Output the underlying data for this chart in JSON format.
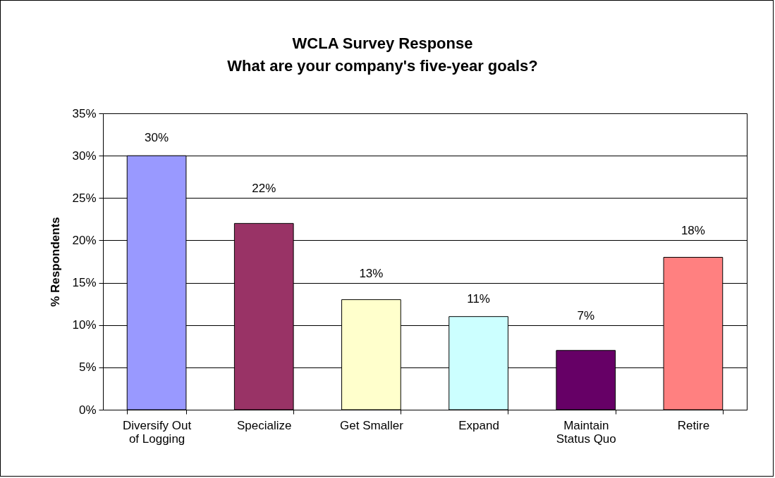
{
  "chart_data": {
    "type": "bar",
    "title": "WCLA Survey Response",
    "subtitle": "What are your company's five-year goals?",
    "ylabel": "% Respondents",
    "categories": [
      "Diversify Out of Logging",
      "Specialize",
      "Get Smaller",
      "Expand",
      "Maintain Status Quo",
      "Retire"
    ],
    "values": [
      30,
      22,
      13,
      11,
      7,
      18
    ],
    "value_labels": [
      "30%",
      "22%",
      "13%",
      "11%",
      "7%",
      "18%"
    ],
    "colors": [
      "#9999ff",
      "#993366",
      "#ffffcc",
      "#ccffff",
      "#660066",
      "#ff8080"
    ],
    "ylim": [
      0,
      35
    ],
    "yticks": [
      {
        "value": 0,
        "label": "0%"
      },
      {
        "value": 5,
        "label": "5%"
      },
      {
        "value": 10,
        "label": "10%"
      },
      {
        "value": 15,
        "label": "15%"
      },
      {
        "value": 20,
        "label": "20%"
      },
      {
        "value": 25,
        "label": "25%"
      },
      {
        "value": 30,
        "label": "30%"
      },
      {
        "value": 35,
        "label": "35%"
      }
    ],
    "grid": "y"
  }
}
